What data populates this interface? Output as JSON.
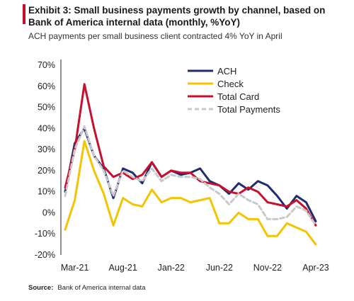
{
  "header": {
    "title": "Exhibit 3: Small business payments growth by channel, based on Bank of America internal data (monthly, %YoY)",
    "subtitle": "ACH payments per small business client contracted 4% YoY in April"
  },
  "source": {
    "label": "Source:",
    "text": "Bank of America internal data"
  },
  "chart_data": {
    "type": "line",
    "title": "",
    "xlabel": "",
    "ylabel": "",
    "ylim": [
      -20,
      70
    ],
    "y_ticks": [
      "70%",
      "60%",
      "50%",
      "40%",
      "30%",
      "20%",
      "10%",
      "0%",
      "-10%",
      "-20%"
    ],
    "x_ticks": [
      "Mar-21",
      "Aug-21",
      "Jan-22",
      "Jun-22",
      "Nov-22",
      "Apr-23"
    ],
    "legend_position": "top-right",
    "grid": false,
    "x": [
      "Feb-21",
      "Mar-21",
      "Apr-21",
      "May-21",
      "Jun-21",
      "Jul-21",
      "Aug-21",
      "Sep-21",
      "Oct-21",
      "Nov-21",
      "Dec-21",
      "Jan-22",
      "Feb-22",
      "Mar-22",
      "Apr-22",
      "May-22",
      "Jun-22",
      "Jul-22",
      "Aug-22",
      "Sep-22",
      "Oct-22",
      "Nov-22",
      "Dec-22",
      "Jan-23",
      "Feb-23",
      "Mar-23",
      "Apr-23"
    ],
    "series": [
      {
        "name": "ACH",
        "color": "#1f2d6b",
        "dash": "none",
        "values": [
          10,
          33,
          40,
          27,
          21,
          7,
          21,
          19,
          14,
          24,
          17,
          20,
          18,
          19,
          21,
          15,
          13,
          9,
          14,
          11,
          15,
          13,
          8,
          2,
          8,
          5,
          -4
        ]
      },
      {
        "name": "Check",
        "color": "#f5c400",
        "dash": "none",
        "values": [
          -8,
          6,
          34,
          20,
          9,
          -6,
          7,
          4,
          3,
          11,
          5,
          7,
          7,
          5,
          6,
          7,
          -5,
          -5,
          0,
          -3,
          -3,
          -11,
          -11,
          -5,
          -7,
          -9,
          -15
        ]
      },
      {
        "name": "Total Card",
        "color": "#c8102e",
        "dash": "none",
        "values": [
          12,
          30,
          61,
          40,
          22,
          17,
          19,
          16,
          18,
          24,
          17,
          20,
          19,
          19,
          15,
          14,
          13,
          10,
          9,
          12,
          10,
          5,
          4,
          3,
          6,
          2,
          -6
        ]
      },
      {
        "name": "Total Payments",
        "color": "#c9c9c9",
        "dash": "6,4",
        "values": [
          8,
          30,
          41,
          27,
          20,
          8,
          20,
          17,
          15,
          21,
          15,
          18,
          17,
          17,
          16,
          12,
          9,
          4,
          9,
          6,
          4,
          -3,
          -3,
          -2,
          3,
          1,
          -6
        ]
      }
    ]
  }
}
